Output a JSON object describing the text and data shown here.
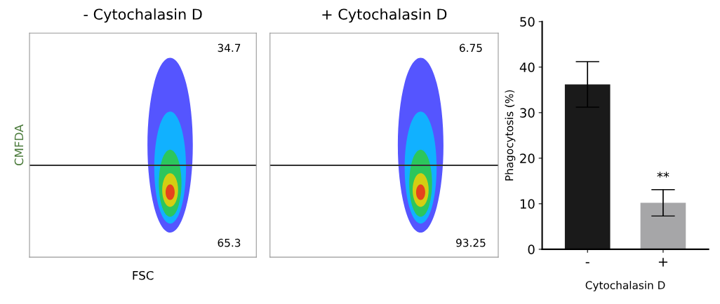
{
  "chart_data": [
    {
      "type": "other",
      "title": "- Cytochalasin D",
      "xlabel": "FSC",
      "ylabel": "CMFDA",
      "annotations": [
        "34.7",
        "65.3"
      ]
    },
    {
      "type": "other",
      "title": "+ Cytochalasin D",
      "annotations": [
        "6.75",
        "93.25"
      ]
    },
    {
      "type": "bar",
      "xlabel": "Cytochalasin D",
      "ylabel": "Phagocytosis (%)",
      "categories": [
        "-",
        "+"
      ],
      "values": [
        36.2,
        10.2
      ],
      "errors": [
        5.0,
        2.9
      ],
      "colors": [
        "#1a1a1a",
        "#a6a6a8"
      ],
      "ylim": [
        0,
        50
      ],
      "yticks": [
        0,
        10,
        20,
        30,
        40,
        50
      ],
      "annotations": [
        "**"
      ],
      "grid": false
    }
  ]
}
